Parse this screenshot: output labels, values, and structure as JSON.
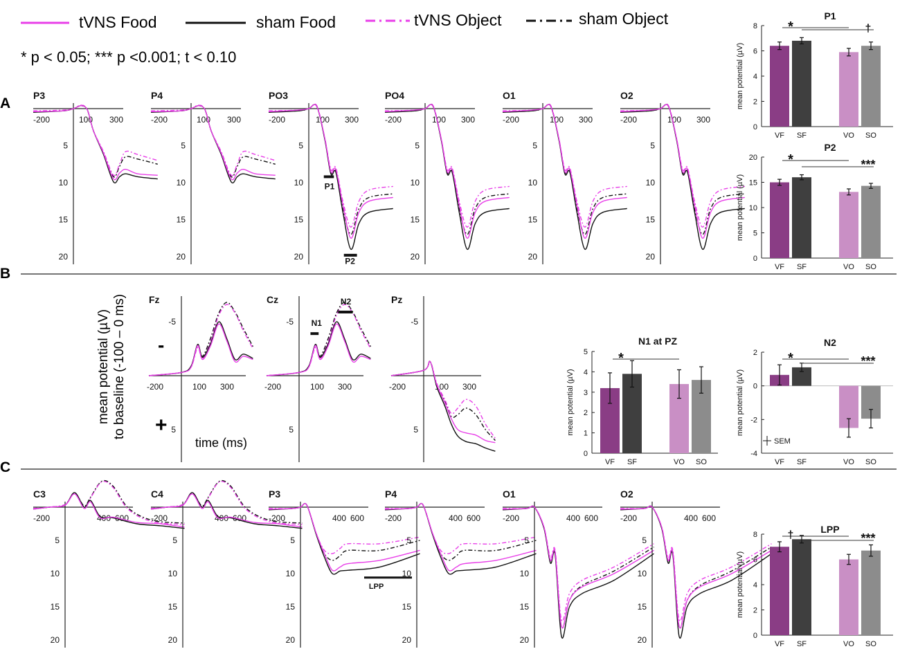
{
  "legend": {
    "items": [
      {
        "label": "tVNS Food",
        "color": "#e83ee8",
        "dash": "solid"
      },
      {
        "label": "sham Food",
        "color": "#111111",
        "dash": "solid"
      },
      {
        "label": "tVNS Object",
        "color": "#e83ee8",
        "dash": "dashdot"
      },
      {
        "label": "sham Object",
        "color": "#111111",
        "dash": "dashdot"
      }
    ],
    "significance": "* p < 0.05; *** p <0.001; t < 0.10"
  },
  "panel_labels": {
    "a": "A",
    "b": "B",
    "c": "C"
  },
  "row_b": {
    "axis_label_line1": "mean potential (µV)",
    "axis_label_line2": "to baseline (-100 – 0 ms)",
    "minus_sign": "-",
    "plus_sign": "+",
    "time_label": "time (ms)"
  },
  "colors": {
    "VF": "#8a3d85",
    "SF": "#3f3f3f",
    "VO": "#c98fc5",
    "SO": "#8c8c8c",
    "tVNS": "#e83ee8",
    "sham": "#111111"
  },
  "chart_data": [
    {
      "type": "line",
      "id": "A-P3",
      "title": "P3",
      "x_ticks": [
        "-200",
        "100",
        "300"
      ],
      "y_ticks": [
        "5",
        "10",
        "15",
        "20"
      ],
      "shape": "A1",
      "ylim": [
        -1,
        21
      ],
      "xlim": [
        -200,
        450
      ]
    },
    {
      "type": "line",
      "id": "A-P4",
      "title": "P4",
      "x_ticks": [
        "-200",
        "100",
        "300"
      ],
      "y_ticks": [
        "5",
        "10",
        "15",
        "20"
      ],
      "shape": "A1",
      "ylim": [
        -1,
        21
      ],
      "xlim": [
        -200,
        450
      ]
    },
    {
      "type": "line",
      "id": "A-PO3",
      "title": "PO3",
      "x_ticks": [
        "-200",
        "100",
        "300"
      ],
      "y_ticks": [
        "5",
        "10",
        "15",
        "20"
      ],
      "shape": "A2",
      "ylim": [
        -1,
        21
      ],
      "xlim": [
        -200,
        450
      ],
      "annotations": [
        "P1",
        "P2"
      ]
    },
    {
      "type": "line",
      "id": "A-PO4",
      "title": "PO4",
      "x_ticks": [
        "-200",
        "100",
        "300"
      ],
      "y_ticks": [
        "5",
        "10",
        "15",
        "20"
      ],
      "shape": "A2",
      "ylim": [
        -1,
        21
      ],
      "xlim": [
        -200,
        450
      ]
    },
    {
      "type": "line",
      "id": "A-O1",
      "title": "O1",
      "x_ticks": [
        "-200",
        "100",
        "300"
      ],
      "y_ticks": [
        "5",
        "10",
        "15",
        "20"
      ],
      "shape": "A2",
      "ylim": [
        -1,
        21
      ],
      "xlim": [
        -200,
        450
      ]
    },
    {
      "type": "line",
      "id": "A-O2",
      "title": "O2",
      "x_ticks": [
        "-200",
        "100",
        "300"
      ],
      "y_ticks": [
        "5",
        "10",
        "15",
        "20"
      ],
      "shape": "A2",
      "ylim": [
        -1,
        21
      ],
      "xlim": [
        -200,
        450
      ]
    },
    {
      "type": "line",
      "id": "B-Fz",
      "title": "Fz",
      "x_ticks": [
        "-200",
        "100",
        "300"
      ],
      "y_ticks": [
        "-5",
        "5"
      ],
      "shape": "B1",
      "ylim": [
        -7.5,
        7.5
      ],
      "xlim": [
        -200,
        450
      ]
    },
    {
      "type": "line",
      "id": "B-Cz",
      "title": "Cz",
      "x_ticks": [
        "-200",
        "100",
        "300"
      ],
      "y_ticks": [
        "-5",
        "5"
      ],
      "shape": "B1",
      "ylim": [
        -7.5,
        7.5
      ],
      "xlim": [
        -200,
        450
      ],
      "annotations": [
        "N1",
        "N2"
      ]
    },
    {
      "type": "line",
      "id": "B-Pz",
      "title": "Pz",
      "x_ticks": [
        "-200",
        "100",
        "300"
      ],
      "y_ticks": [
        "-5",
        "5"
      ],
      "shape": "B2",
      "ylim": [
        -7.5,
        7.5
      ],
      "xlim": [
        -200,
        450
      ]
    },
    {
      "type": "line",
      "id": "C-C3",
      "title": "C3",
      "x_ticks": [
        "-200",
        "400",
        "600"
      ],
      "y_ticks": [
        "5",
        "10",
        "15",
        "20"
      ],
      "shape": "C1",
      "ylim": [
        -1,
        21
      ],
      "xlim": [
        -200,
        750
      ]
    },
    {
      "type": "line",
      "id": "C-C4",
      "title": "C4",
      "x_ticks": [
        "-200",
        "400",
        "600"
      ],
      "y_ticks": [
        "5",
        "10",
        "15",
        "20"
      ],
      "shape": "C1",
      "ylim": [
        -1,
        21
      ],
      "xlim": [
        -200,
        750
      ]
    },
    {
      "type": "line",
      "id": "C-P3",
      "title": "P3",
      "x_ticks": [
        "-200",
        "400",
        "600"
      ],
      "y_ticks": [
        "5",
        "10",
        "15",
        "20"
      ],
      "shape": "C2",
      "ylim": [
        -1,
        21
      ],
      "xlim": [
        -200,
        750
      ],
      "annotations": [
        "LPP"
      ]
    },
    {
      "type": "line",
      "id": "C-P4",
      "title": "P4",
      "x_ticks": [
        "-200",
        "400",
        "600"
      ],
      "y_ticks": [
        "5",
        "10",
        "15",
        "20"
      ],
      "shape": "C2",
      "ylim": [
        -1,
        21
      ],
      "xlim": [
        -200,
        750
      ]
    },
    {
      "type": "line",
      "id": "C-O1",
      "title": "O1",
      "x_ticks": [
        "-200",
        "400",
        "600"
      ],
      "y_ticks": [
        "5",
        "10",
        "15",
        "20"
      ],
      "shape": "C3",
      "ylim": [
        -1,
        21
      ],
      "xlim": [
        -200,
        750
      ]
    },
    {
      "type": "line",
      "id": "C-O2",
      "title": "O2",
      "x_ticks": [
        "-200",
        "400",
        "600"
      ],
      "y_ticks": [
        "5",
        "10",
        "15",
        "20"
      ],
      "shape": "C3",
      "ylim": [
        -1,
        21
      ],
      "xlim": [
        -200,
        750
      ]
    },
    {
      "type": "bar",
      "id": "bar-P1",
      "title": "P1",
      "categories": [
        "VF",
        "SF",
        "VO",
        "SO"
      ],
      "values": [
        6.4,
        6.8,
        5.9,
        6.4
      ],
      "errors": [
        0.3,
        0.25,
        0.3,
        0.3
      ],
      "ylim": [
        0,
        8
      ],
      "y_ticks": [
        "0",
        "2",
        "4",
        "6",
        "8"
      ],
      "ylabel": "mean potential (µV)",
      "sig": [
        {
          "from": 0,
          "to": 2,
          "label": "*"
        },
        {
          "from": 1,
          "to": 3,
          "label": "†"
        }
      ]
    },
    {
      "type": "bar",
      "id": "bar-P2",
      "title": "P2",
      "categories": [
        "VF",
        "SF",
        "VO",
        "SO"
      ],
      "values": [
        15.0,
        16.0,
        13.1,
        14.3
      ],
      "errors": [
        0.6,
        0.5,
        0.6,
        0.5
      ],
      "ylim": [
        0,
        20
      ],
      "y_ticks": [
        "0",
        "5",
        "10",
        "15",
        "20"
      ],
      "ylabel": "mean potential (µV)",
      "sig": [
        {
          "from": 0,
          "to": 2,
          "label": "*"
        },
        {
          "from": 1,
          "to": 3,
          "label": "***"
        }
      ]
    },
    {
      "type": "bar",
      "id": "bar-N1",
      "title": "N1 at PZ",
      "categories": [
        "VF",
        "SF",
        "VO",
        "SO"
      ],
      "values": [
        3.2,
        3.9,
        3.4,
        3.6
      ],
      "errors": [
        0.75,
        0.65,
        0.7,
        0.65
      ],
      "ylim": [
        0,
        5
      ],
      "y_ticks": [
        "0",
        "1",
        "2",
        "3",
        "4",
        "5"
      ],
      "ylabel": "mean potential (µV)",
      "sig": [
        {
          "from": 0,
          "to": 2,
          "label": "*"
        }
      ]
    },
    {
      "type": "bar",
      "id": "bar-N2",
      "title": "N2",
      "categories": [
        "VF",
        "SF",
        "VO",
        "SO"
      ],
      "values": [
        0.65,
        1.1,
        -2.5,
        -1.95
      ],
      "errors": [
        0.6,
        0.25,
        0.55,
        0.55
      ],
      "ylim": [
        -4,
        2
      ],
      "y_ticks": [
        "-4",
        "-2",
        "0",
        "2"
      ],
      "ylabel": "mean potential (µV)",
      "sem_label": "SEM",
      "sig": [
        {
          "from": 0,
          "to": 2,
          "label": "*"
        },
        {
          "from": 1,
          "to": 3,
          "label": "***"
        }
      ]
    },
    {
      "type": "bar",
      "id": "bar-LPP",
      "title": "LPP",
      "categories": [
        "VF",
        "SF",
        "VO",
        "SO"
      ],
      "values": [
        7.0,
        7.6,
        6.0,
        6.7
      ],
      "errors": [
        0.4,
        0.3,
        0.4,
        0.45
      ],
      "ylim": [
        0,
        8
      ],
      "y_ticks": [
        "0",
        "2",
        "4",
        "6",
        "8"
      ],
      "ylabel": "mean potential (µV)",
      "sig": [
        {
          "from": 0,
          "to": 2,
          "label": "†"
        },
        {
          "from": 1,
          "to": 3,
          "label": "***"
        }
      ]
    }
  ]
}
